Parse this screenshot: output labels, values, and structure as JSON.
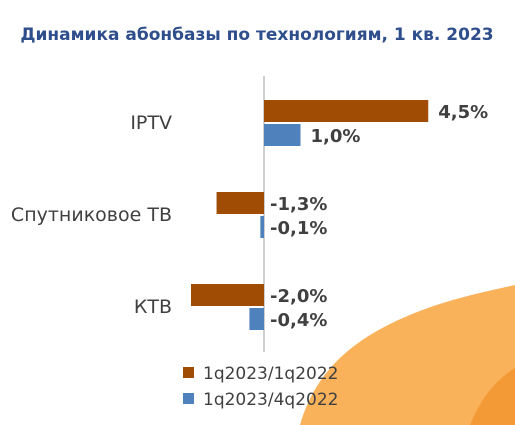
{
  "colors": {
    "title": "#2F4E8C",
    "series1": "#A14C05",
    "series2": "#4F81BD",
    "axis": "#BFBFBF",
    "text": "#404040",
    "decor_light": "#F9B25A",
    "decor_dark": "#F39A36"
  },
  "chart_data": {
    "type": "bar",
    "orientation": "horizontal",
    "title": "Динамика абонбазы по технологиям, 1 кв. 2023",
    "categories": [
      "IPTV",
      "Спутниковое ТВ",
      "КТВ"
    ],
    "series": [
      {
        "name": "1q2023/1q2022",
        "values": [
          4.5,
          -1.3,
          -2.0
        ],
        "labels": [
          "4,5%",
          "-1,3%",
          "-2,0%"
        ]
      },
      {
        "name": "1q2023/4q2022",
        "values": [
          1.0,
          -0.1,
          -0.4
        ],
        "labels": [
          "1,0%",
          "-0,1%",
          "-0,4%"
        ]
      }
    ],
    "xlim": [
      -2.0,
      4.5
    ],
    "grid": false,
    "legend": "bottom"
  }
}
